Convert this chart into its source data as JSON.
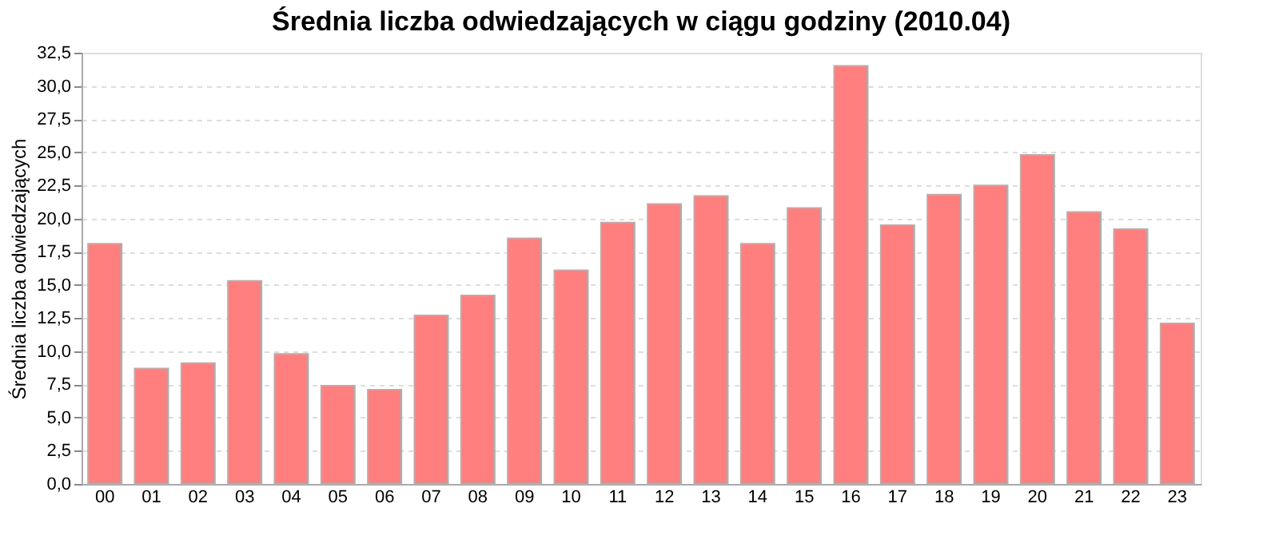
{
  "chart_data": {
    "type": "bar",
    "title": "Średnia liczba odwiedzających w ciągu godziny (2010.04)",
    "ylabel": "Średnia liczba odwiedzających",
    "categories": [
      "00",
      "01",
      "02",
      "03",
      "04",
      "05",
      "06",
      "07",
      "08",
      "09",
      "10",
      "11",
      "12",
      "13",
      "14",
      "15",
      "16",
      "17",
      "18",
      "19",
      "20",
      "21",
      "22",
      "23"
    ],
    "values": [
      18.1,
      8.7,
      9.1,
      15.3,
      9.8,
      7.4,
      7.1,
      12.7,
      14.2,
      18.5,
      16.1,
      19.7,
      21.1,
      21.7,
      18.1,
      20.8,
      31.5,
      19.5,
      21.8,
      22.5,
      24.8,
      20.5,
      19.2,
      12.1
    ],
    "color": "#ff7f7f",
    "ylim": [
      0,
      32.5
    ],
    "yticks": [
      {
        "value": 0,
        "label": "0,0"
      },
      {
        "value": 2.5,
        "label": "2,5"
      },
      {
        "value": 5,
        "label": "5,0"
      },
      {
        "value": 7.5,
        "label": "7,5"
      },
      {
        "value": 10,
        "label": "10,0"
      },
      {
        "value": 12.5,
        "label": "12,5"
      },
      {
        "value": 15,
        "label": "15,0"
      },
      {
        "value": 17.5,
        "label": "17,5"
      },
      {
        "value": 20,
        "label": "20,0"
      },
      {
        "value": 22.5,
        "label": "22,5"
      },
      {
        "value": 25,
        "label": "25,0"
      },
      {
        "value": 27.5,
        "label": "27,5"
      },
      {
        "value": 30,
        "label": "30,0"
      },
      {
        "value": 32.5,
        "label": "32,5"
      }
    ],
    "grid": "y"
  }
}
